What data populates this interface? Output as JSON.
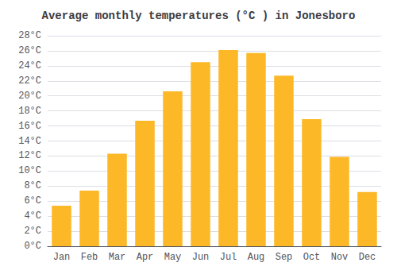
{
  "chart_data": {
    "type": "bar",
    "title": "Average monthly temperatures (°C ) in Jonesboro",
    "categories": [
      "Jan",
      "Feb",
      "Mar",
      "Apr",
      "May",
      "Jun",
      "Jul",
      "Aug",
      "Sep",
      "Oct",
      "Nov",
      "Dec"
    ],
    "values": [
      5.4,
      7.4,
      12.3,
      16.7,
      20.6,
      24.5,
      26.1,
      25.7,
      22.7,
      16.9,
      11.9,
      7.2
    ],
    "color": "#FDB827",
    "ylim": [
      0,
      28
    ],
    "yticks": [
      {
        "value": 0,
        "label": "0°C"
      },
      {
        "value": 2,
        "label": "2°C"
      },
      {
        "value": 4,
        "label": "4°C"
      },
      {
        "value": 6,
        "label": "6°C"
      },
      {
        "value": 8,
        "label": "8°C"
      },
      {
        "value": 10,
        "label": "10°C"
      },
      {
        "value": 12,
        "label": "12°C"
      },
      {
        "value": 14,
        "label": "14°C"
      },
      {
        "value": 16,
        "label": "16°C"
      },
      {
        "value": 18,
        "label": "18°C"
      },
      {
        "value": 20,
        "label": "20°C"
      },
      {
        "value": 22,
        "label": "22°C"
      },
      {
        "value": 24,
        "label": "24°C"
      },
      {
        "value": 26,
        "label": "26°C"
      },
      {
        "value": 28,
        "label": "28°C"
      }
    ],
    "grid": true
  }
}
